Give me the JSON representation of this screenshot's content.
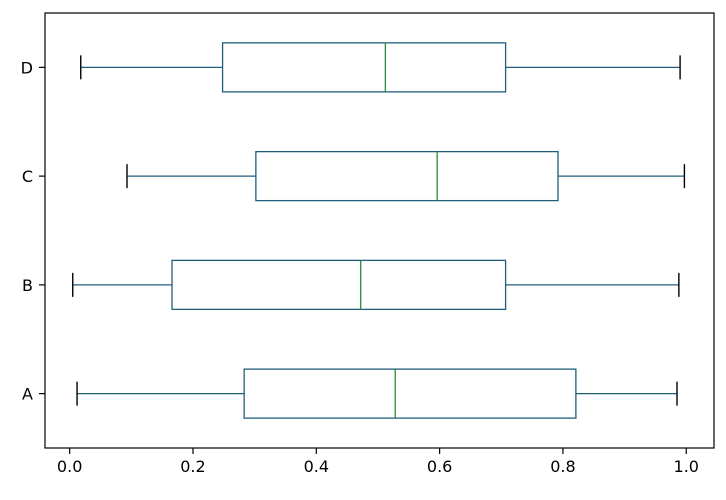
{
  "chart_data": {
    "type": "boxplot",
    "orientation": "horizontal",
    "title": "",
    "xlabel": "",
    "ylabel": "",
    "categories": [
      "A",
      "B",
      "C",
      "D"
    ],
    "boxes": [
      {
        "label": "A",
        "whislo": 0.012,
        "q1": 0.283,
        "median": 0.528,
        "q3": 0.821,
        "whishi": 0.985
      },
      {
        "label": "B",
        "whislo": 0.005,
        "q1": 0.166,
        "median": 0.472,
        "q3": 0.707,
        "whishi": 0.988
      },
      {
        "label": "C",
        "whislo": 0.093,
        "q1": 0.302,
        "median": 0.596,
        "q3": 0.792,
        "whishi": 0.997
      },
      {
        "label": "D",
        "whislo": 0.018,
        "q1": 0.248,
        "median": 0.512,
        "q3": 0.707,
        "whishi": 0.99
      }
    ],
    "xlim": [
      -0.04,
      1.045
    ],
    "xticks": [
      0.0,
      0.2,
      0.4,
      0.6,
      0.8,
      1.0
    ],
    "xtick_labels": [
      "0.0",
      "0.2",
      "0.4",
      "0.6",
      "0.8",
      "1.0"
    ],
    "grid": false,
    "legend": "none",
    "colors": {
      "box": "#1f5f7a",
      "whisker": "#1f5f7a",
      "cap": "#000000",
      "median": "#2e8b3a",
      "axes": "#000000"
    }
  }
}
